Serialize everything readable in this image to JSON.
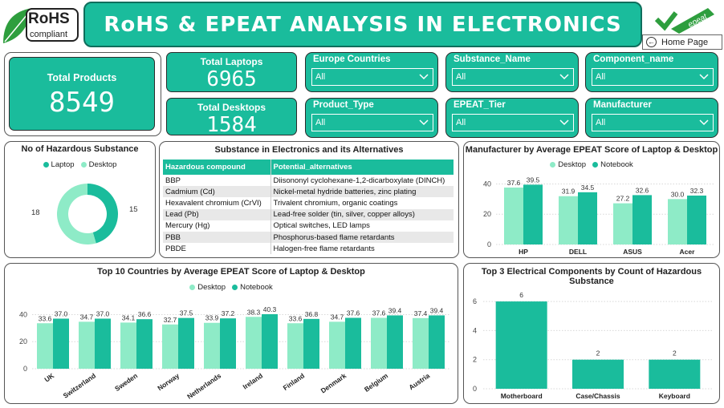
{
  "logos": {
    "rohs_line1": "RoHS",
    "rohs_line2": "compliant",
    "epeat": "epeat"
  },
  "header": {
    "title": "RoHS & EPEAT ANALYSIS IN ELECTRONICS",
    "home_label": "Home Page"
  },
  "kpis": {
    "total_products": {
      "label": "Total Products",
      "value": "8549"
    },
    "total_laptops": {
      "label": "Total Laptops",
      "value": "6965"
    },
    "total_desktops": {
      "label": "Total Desktops",
      "value": "1584"
    }
  },
  "slicers": [
    {
      "label": "Europe Countries",
      "value": "All"
    },
    {
      "label": "Substance_Name",
      "value": "All"
    },
    {
      "label": "Component_name",
      "value": "All"
    },
    {
      "label": "Product_Type",
      "value": "All"
    },
    {
      "label": "EPEAT_Tier",
      "value": "All"
    },
    {
      "label": "Manufacturer",
      "value": "All"
    }
  ],
  "colors": {
    "teal": "#1ABC9C",
    "light": "#8EEBC7",
    "dark_teal": "#0f6e5c"
  },
  "donut": {
    "title": "No of Hazardous Substance",
    "legend": [
      "Laptop",
      "Desktop"
    ],
    "laptop_value": "15",
    "desktop_value": "18"
  },
  "table": {
    "title": "Substance in Electronics and its Alternatives",
    "headers": [
      "Hazardous compound",
      "Potential_alternatives"
    ],
    "rows": [
      [
        "BBP",
        "Diisononyl cyclohexane-1,2-dicarboxylate (DINCH)"
      ],
      [
        "Cadmium (Cd)",
        "Nickel-metal hydride batteries, zinc plating"
      ],
      [
        "Hexavalent chromium (CrVI)",
        "Trivalent chromium, organic coatings"
      ],
      [
        "Lead (Pb)",
        "Lead-free solder (tin, silver, copper alloys)"
      ],
      [
        "Mercury (Hg)",
        "Optical switches, LED lamps"
      ],
      [
        "PBB",
        "Phosphorus-based flame retardants"
      ],
      [
        "PBDE",
        "Halogen-free flame retardants"
      ]
    ]
  },
  "chart_data": [
    {
      "type": "pie",
      "title": "No of Hazardous Substance",
      "categories": [
        "Laptop",
        "Desktop"
      ],
      "values": [
        15,
        18
      ]
    },
    {
      "type": "bar",
      "title": "Manufacturer by Average EPEAT Score of Laptop & Desktop",
      "categories": [
        "HP",
        "DELL",
        "ASUS",
        "Acer"
      ],
      "series": [
        {
          "name": "Desktop",
          "values": [
            37.6,
            31.9,
            27.2,
            30.0
          ]
        },
        {
          "name": "Notebook",
          "values": [
            39.5,
            34.5,
            32.6,
            32.3
          ]
        }
      ],
      "ylim": [
        0,
        45
      ],
      "yticks": [
        0,
        20,
        40
      ],
      "value_labels": [
        [
          "37.6",
          "31.9",
          "27.2",
          "30.0"
        ],
        [
          "39.5",
          "34.5",
          "32.6",
          "32.3"
        ]
      ],
      "legend": "top"
    },
    {
      "type": "bar",
      "title": "Top 10 Countries by Average EPEAT Score of Laptop & Desktop",
      "categories": [
        "UK",
        "Switzerland",
        "Sweden",
        "Norway",
        "Netherlands",
        "Ireland",
        "Finland",
        "Denmark",
        "Belgium",
        "Austria"
      ],
      "series": [
        {
          "name": "Desktop",
          "values": [
            33.6,
            34.7,
            34.1,
            32.7,
            33.9,
            38.3,
            33.6,
            34.7,
            37.6,
            37.4
          ]
        },
        {
          "name": "Notebook",
          "values": [
            37.0,
            37.0,
            36.6,
            37.5,
            37.2,
            40.3,
            36.8,
            37.6,
            39.4,
            39.4
          ]
        }
      ],
      "ylim": [
        0,
        45
      ],
      "yticks": [
        0,
        20,
        40
      ],
      "value_labels": [
        [
          "33.6",
          "34.7",
          "34.1",
          "32.7",
          "33.9",
          "38.3",
          "33.6",
          "34.7",
          "37.6",
          "37.4"
        ],
        [
          "37.0",
          "37.0",
          "36.6",
          "37.5",
          "37.2",
          "40.3",
          "36.8",
          "37.6",
          "39.4",
          "39.4"
        ]
      ],
      "legend": "top"
    },
    {
      "type": "bar",
      "title": "Top 3 Electrical Components by Count of Hazardous Substance",
      "categories": [
        "Motherboard",
        "Case/Chassis",
        "Keyboard"
      ],
      "values": [
        6,
        2,
        2
      ],
      "ylim": [
        0,
        6.5
      ],
      "yticks": [
        0,
        2,
        4,
        6
      ]
    }
  ]
}
